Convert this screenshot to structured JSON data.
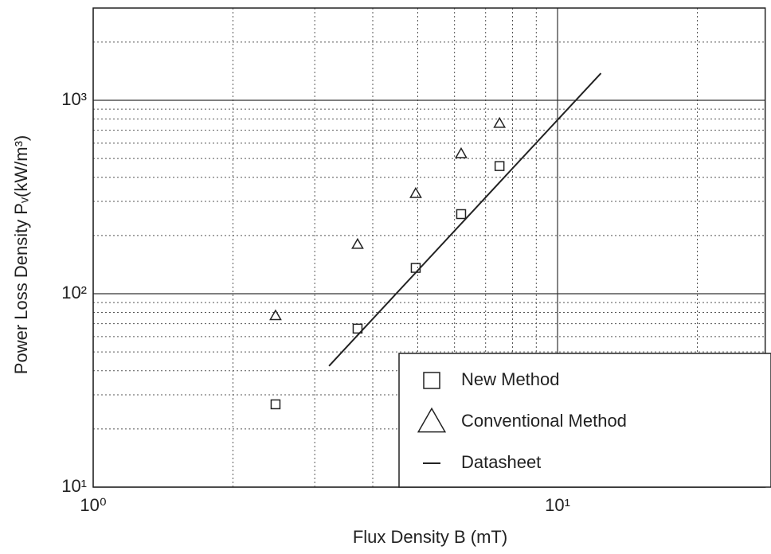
{
  "chart_data": {
    "type": "scatter",
    "xlabel": "Flux Density B (mT)",
    "ylabel": "Power Loss Density  Pᵥ(kW/m³)",
    "xscale": "log",
    "yscale": "log",
    "xlim": [
      1,
      28
    ],
    "ylim": [
      10,
      3000
    ],
    "xticks": [
      {
        "value": 1,
        "label": "10⁰"
      },
      {
        "value": 10,
        "label": "10¹"
      }
    ],
    "yticks": [
      {
        "value": 10,
        "label": "10¹"
      },
      {
        "value": 100,
        "label": "10²"
      },
      {
        "value": 1000,
        "label": "10³"
      }
    ],
    "xminorticks": [
      2,
      3,
      4,
      5,
      6,
      7,
      8,
      9,
      20
    ],
    "yminorticks": [
      20,
      30,
      40,
      50,
      60,
      70,
      80,
      90,
      200,
      300,
      400,
      500,
      600,
      700,
      800,
      900,
      2000,
      3000
    ],
    "grid": true,
    "legend": "lower right",
    "series": [
      {
        "name": "New Method",
        "marker": "square",
        "color": "#222",
        "x": [
          2.47,
          3.71,
          4.95,
          6.2,
          7.5
        ],
        "values": [
          26.8,
          66,
          136,
          258,
          457
        ]
      },
      {
        "name": "Conventional Method",
        "marker": "triangle",
        "color": "#222",
        "x": [
          2.47,
          3.71,
          4.95,
          6.2,
          7.5
        ],
        "values": [
          77,
          180,
          330,
          530,
          760
        ]
      },
      {
        "name": "Datasheet",
        "marker": "line",
        "color": "#222",
        "x": [
          3.22,
          12.4
        ],
        "values": [
          42.3,
          1380
        ]
      }
    ]
  }
}
